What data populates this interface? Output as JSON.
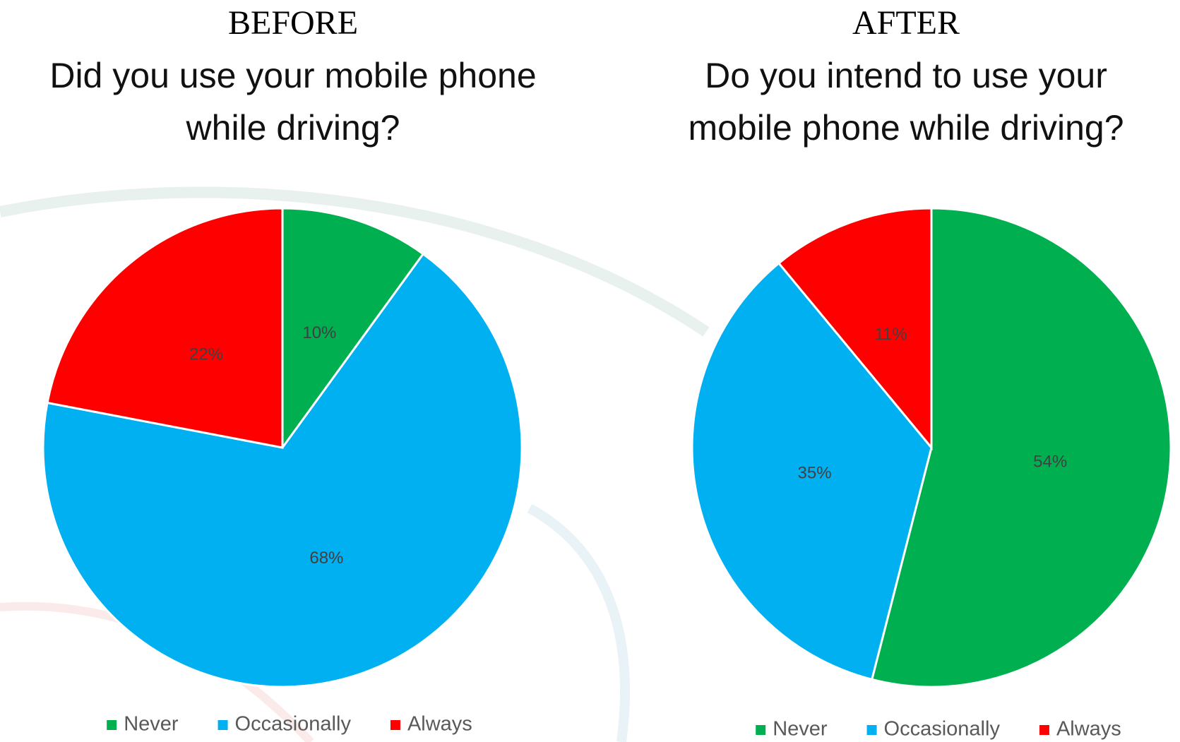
{
  "chart_data": [
    {
      "type": "pie",
      "heading": "BEFORE",
      "title": [
        "Did you use your mobile phone",
        "while driving?"
      ],
      "categories": [
        "Never",
        "Occasionally",
        "Always"
      ],
      "values": [
        10,
        68,
        22
      ],
      "value_labels": [
        "10%",
        "68%",
        "22%"
      ],
      "colors": [
        "#00b050",
        "#00b0f0",
        "#ff0000"
      ]
    },
    {
      "type": "pie",
      "heading": "AFTER",
      "title": [
        "Do you intend to use your",
        "mobile phone while driving?"
      ],
      "categories": [
        "Never",
        "Occasionally",
        "Always"
      ],
      "values": [
        54,
        35,
        11
      ],
      "value_labels": [
        "54%",
        "35%",
        "11%"
      ],
      "colors": [
        "#00b050",
        "#00b0f0",
        "#ff0000"
      ]
    }
  ]
}
